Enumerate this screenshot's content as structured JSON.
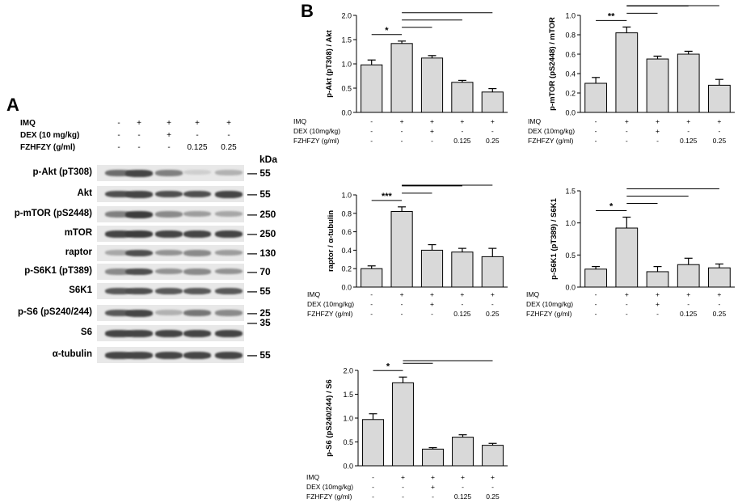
{
  "panel_labels": {
    "a": "A",
    "b": "B"
  },
  "blot": {
    "treatment_rows": [
      {
        "label": "IMQ",
        "values": [
          "-",
          "+",
          "+",
          "+",
          "+"
        ]
      },
      {
        "label": "DEX (10 mg/kg)",
        "values": [
          "-",
          "-",
          "+",
          "-",
          "-"
        ]
      },
      {
        "label": "FZHFZY  (g/ml)",
        "values": [
          "-",
          "-",
          "-",
          "0.125",
          "0.25"
        ]
      }
    ],
    "kda_header": "kDa",
    "rows": [
      {
        "label": "p-Akt (pT308)",
        "kda": "55",
        "intensity": [
          0.65,
          0.85,
          0.55,
          0.15,
          0.3
        ]
      },
      {
        "label": "Akt",
        "kda": "55",
        "intensity": [
          0.8,
          0.85,
          0.8,
          0.8,
          0.85
        ]
      },
      {
        "label": "p-mTOR (pS2448)",
        "kda": "250",
        "intensity": [
          0.55,
          0.9,
          0.5,
          0.4,
          0.35
        ]
      },
      {
        "label": "mTOR",
        "kda": "250",
        "intensity": [
          0.85,
          0.9,
          0.85,
          0.85,
          0.85
        ]
      },
      {
        "label": "raptor",
        "kda": "130",
        "intensity": [
          0.35,
          0.8,
          0.45,
          0.5,
          0.4
        ]
      },
      {
        "label": "p-S6K1 (pT389)",
        "kda": "70",
        "intensity": [
          0.5,
          0.8,
          0.45,
          0.5,
          0.45
        ]
      },
      {
        "label": "S6K1",
        "kda": "55",
        "intensity": [
          0.75,
          0.8,
          0.75,
          0.75,
          0.75
        ]
      },
      {
        "label": "p-S6 (pS240/244)",
        "kda": "25",
        "intensity": [
          0.75,
          0.85,
          0.3,
          0.6,
          0.5
        ]
      },
      {
        "label": "S6",
        "kda": "35",
        "intensity": [
          0.85,
          0.85,
          0.85,
          0.85,
          0.85
        ]
      },
      {
        "label": "α-tubulin",
        "kda": "55",
        "intensity": [
          0.85,
          0.85,
          0.85,
          0.85,
          0.85
        ]
      }
    ]
  },
  "chart_data": [
    {
      "type": "bar",
      "ylabel": "p-Akt (pT308) / Akt",
      "ylim": [
        0,
        2.0
      ],
      "yticks": [
        "0.0",
        "0.5",
        "1.0",
        "1.5",
        "2.0"
      ],
      "values": [
        0.98,
        1.42,
        1.12,
        0.62,
        0.42
      ],
      "errors": [
        0.1,
        0.05,
        0.05,
        0.04,
        0.07
      ],
      "significance": [
        {
          "from": 0,
          "to": 1,
          "label": "*"
        },
        {
          "from": 1,
          "to": 2,
          "label": "**"
        },
        {
          "from": 1,
          "to": 3,
          "label": "***"
        },
        {
          "from": 1,
          "to": 4,
          "label": "***"
        }
      ],
      "treatment_rows": [
        {
          "label": "IMQ",
          "values": [
            "-",
            "+",
            "+",
            "+",
            "+"
          ]
        },
        {
          "label": "DEX (10mg/kg)",
          "values": [
            "-",
            "-",
            "+",
            "-",
            "-"
          ]
        },
        {
          "label": "FZHFZY (g/ml)",
          "values": [
            "-",
            "-",
            "-",
            "0.125",
            "0.25"
          ]
        }
      ]
    },
    {
      "type": "bar",
      "ylabel": "p-mTOR (pS2448) / mTOR",
      "ylim": [
        0,
        1.0
      ],
      "yticks": [
        "0.0",
        "0.2",
        "0.4",
        "0.6",
        "0.8",
        "1.0"
      ],
      "values": [
        0.3,
        0.82,
        0.55,
        0.6,
        0.28
      ],
      "errors": [
        0.06,
        0.06,
        0.03,
        0.03,
        0.06
      ],
      "significance": [
        {
          "from": 0,
          "to": 1,
          "label": "**"
        },
        {
          "from": 1,
          "to": 2,
          "label": "*"
        },
        {
          "from": 1,
          "to": 3,
          "label": "*"
        },
        {
          "from": 1,
          "to": 4,
          "label": "**"
        }
      ],
      "treatment_rows": [
        {
          "label": "IMQ",
          "values": [
            "-",
            "+",
            "+",
            "+",
            "+"
          ]
        },
        {
          "label": "DEX (10mg/kg)",
          "values": [
            "-",
            "-",
            "+",
            "-",
            "-"
          ]
        },
        {
          "label": "FZHFZY (g/ml)",
          "values": [
            "-",
            "-",
            "-",
            "0.125",
            "0.25"
          ]
        }
      ]
    },
    {
      "type": "bar",
      "ylabel": "raptor / α-tubulin",
      "ylim": [
        0,
        1.0
      ],
      "yticks": [
        "0.0",
        "0.2",
        "0.4",
        "0.6",
        "0.8",
        "1.0"
      ],
      "values": [
        0.2,
        0.82,
        0.4,
        0.38,
        0.33
      ],
      "errors": [
        0.03,
        0.05,
        0.06,
        0.04,
        0.09
      ],
      "significance": [
        {
          "from": 0,
          "to": 1,
          "label": "***"
        },
        {
          "from": 1,
          "to": 2,
          "label": "**"
        },
        {
          "from": 1,
          "to": 3,
          "label": "**"
        },
        {
          "from": 1,
          "to": 4,
          "label": "*"
        }
      ],
      "treatment_rows": [
        {
          "label": "IMQ",
          "values": [
            "-",
            "+",
            "+",
            "+",
            "+"
          ]
        },
        {
          "label": "DEX (10mg/kg)",
          "values": [
            "-",
            "-",
            "+",
            "-",
            "-"
          ]
        },
        {
          "label": "FZHFZY (g/ml)",
          "values": [
            "-",
            "-",
            "-",
            "0.125",
            "0.25"
          ]
        }
      ]
    },
    {
      "type": "bar",
      "ylabel": "p-S6K1 (pT389) / S6K1",
      "ylim": [
        0,
        1.5
      ],
      "yticks": [
        "0.0",
        "0.5",
        "1.0",
        "1.5"
      ],
      "values": [
        0.28,
        0.92,
        0.24,
        0.35,
        0.3
      ],
      "errors": [
        0.04,
        0.17,
        0.08,
        0.1,
        0.06
      ],
      "significance": [
        {
          "from": 0,
          "to": 1,
          "label": "*"
        },
        {
          "from": 1,
          "to": 2,
          "label": "*"
        },
        {
          "from": 1,
          "to": 3,
          "label": "*"
        },
        {
          "from": 1,
          "to": 4,
          "label": "*"
        }
      ],
      "treatment_rows": [
        {
          "label": "IMQ",
          "values": [
            "-",
            "+",
            "+",
            "+",
            "+"
          ]
        },
        {
          "label": "DEX (10mg/kg)",
          "values": [
            "-",
            "-",
            "+",
            "-",
            "-"
          ]
        },
        {
          "label": "FZHFZY (g/ml)",
          "values": [
            "-",
            "-",
            "-",
            "0.125",
            "0.25"
          ]
        }
      ]
    },
    {
      "type": "bar",
      "ylabel": "p-S6 (pS240/244) / S6",
      "ylim": [
        0,
        2.0
      ],
      "yticks": [
        "0.0",
        "0.5",
        "1.0",
        "1.5",
        "2.0"
      ],
      "values": [
        0.97,
        1.74,
        0.35,
        0.6,
        0.43
      ],
      "errors": [
        0.12,
        0.12,
        0.03,
        0.05,
        0.04
      ],
      "significance": [
        {
          "from": 0,
          "to": 1,
          "label": "*"
        },
        {
          "from": 1,
          "to": 2,
          "label": "***"
        },
        {
          "from": 1,
          "to": 3,
          "label": "**"
        },
        {
          "from": 1,
          "to": 4,
          "label": "***"
        }
      ],
      "treatment_rows": [
        {
          "label": "IMQ",
          "values": [
            "-",
            "+",
            "+",
            "+",
            "+"
          ]
        },
        {
          "label": "DEX (10mg/kg)",
          "values": [
            "-",
            "-",
            "+",
            "-",
            "-"
          ]
        },
        {
          "label": "FZHFZY (g/ml)",
          "values": [
            "-",
            "-",
            "-",
            "0.125",
            "0.25"
          ]
        }
      ]
    }
  ]
}
